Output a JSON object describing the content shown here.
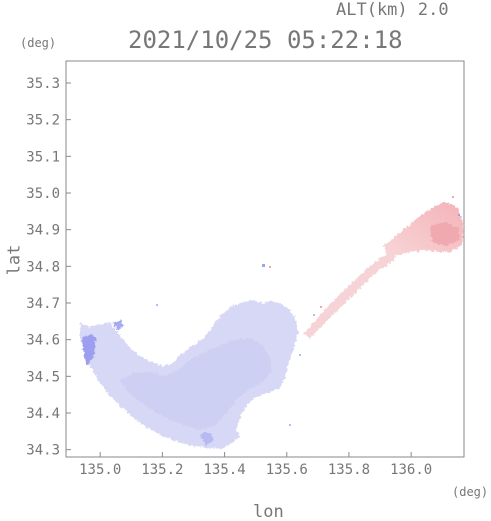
{
  "header": {
    "altitude_label": "ALT(km) 2.0",
    "timestamp": "2021/10/25 05:22:18"
  },
  "axes": {
    "y_unit": "(deg)",
    "x_unit": "(deg)",
    "xlabel": "lon",
    "ylabel": "lat"
  },
  "chart_data": {
    "type": "heatmap",
    "title": "2021/10/25 05:22:18",
    "xlabel": "lon",
    "ylabel": "lat",
    "xlim": [
      134.89,
      136.17
    ],
    "ylim": [
      34.28,
      35.36
    ],
    "x_ticks": [
      "135.0",
      "135.2",
      "135.4",
      "135.6",
      "135.8",
      "136.0"
    ],
    "y_ticks": [
      "34.3",
      "34.4",
      "34.5",
      "34.6",
      "34.7",
      "34.8",
      "34.9",
      "35.0",
      "35.1",
      "35.2",
      "35.3"
    ],
    "grid": false,
    "colors": {
      "low": "#dcdcf8",
      "mid": "#cfd2f4",
      "strong_low": "#8f92ee",
      "high": "#f5c4c8",
      "high_strong": "#f2aab0",
      "axis": "#8a8a8a"
    }
  }
}
